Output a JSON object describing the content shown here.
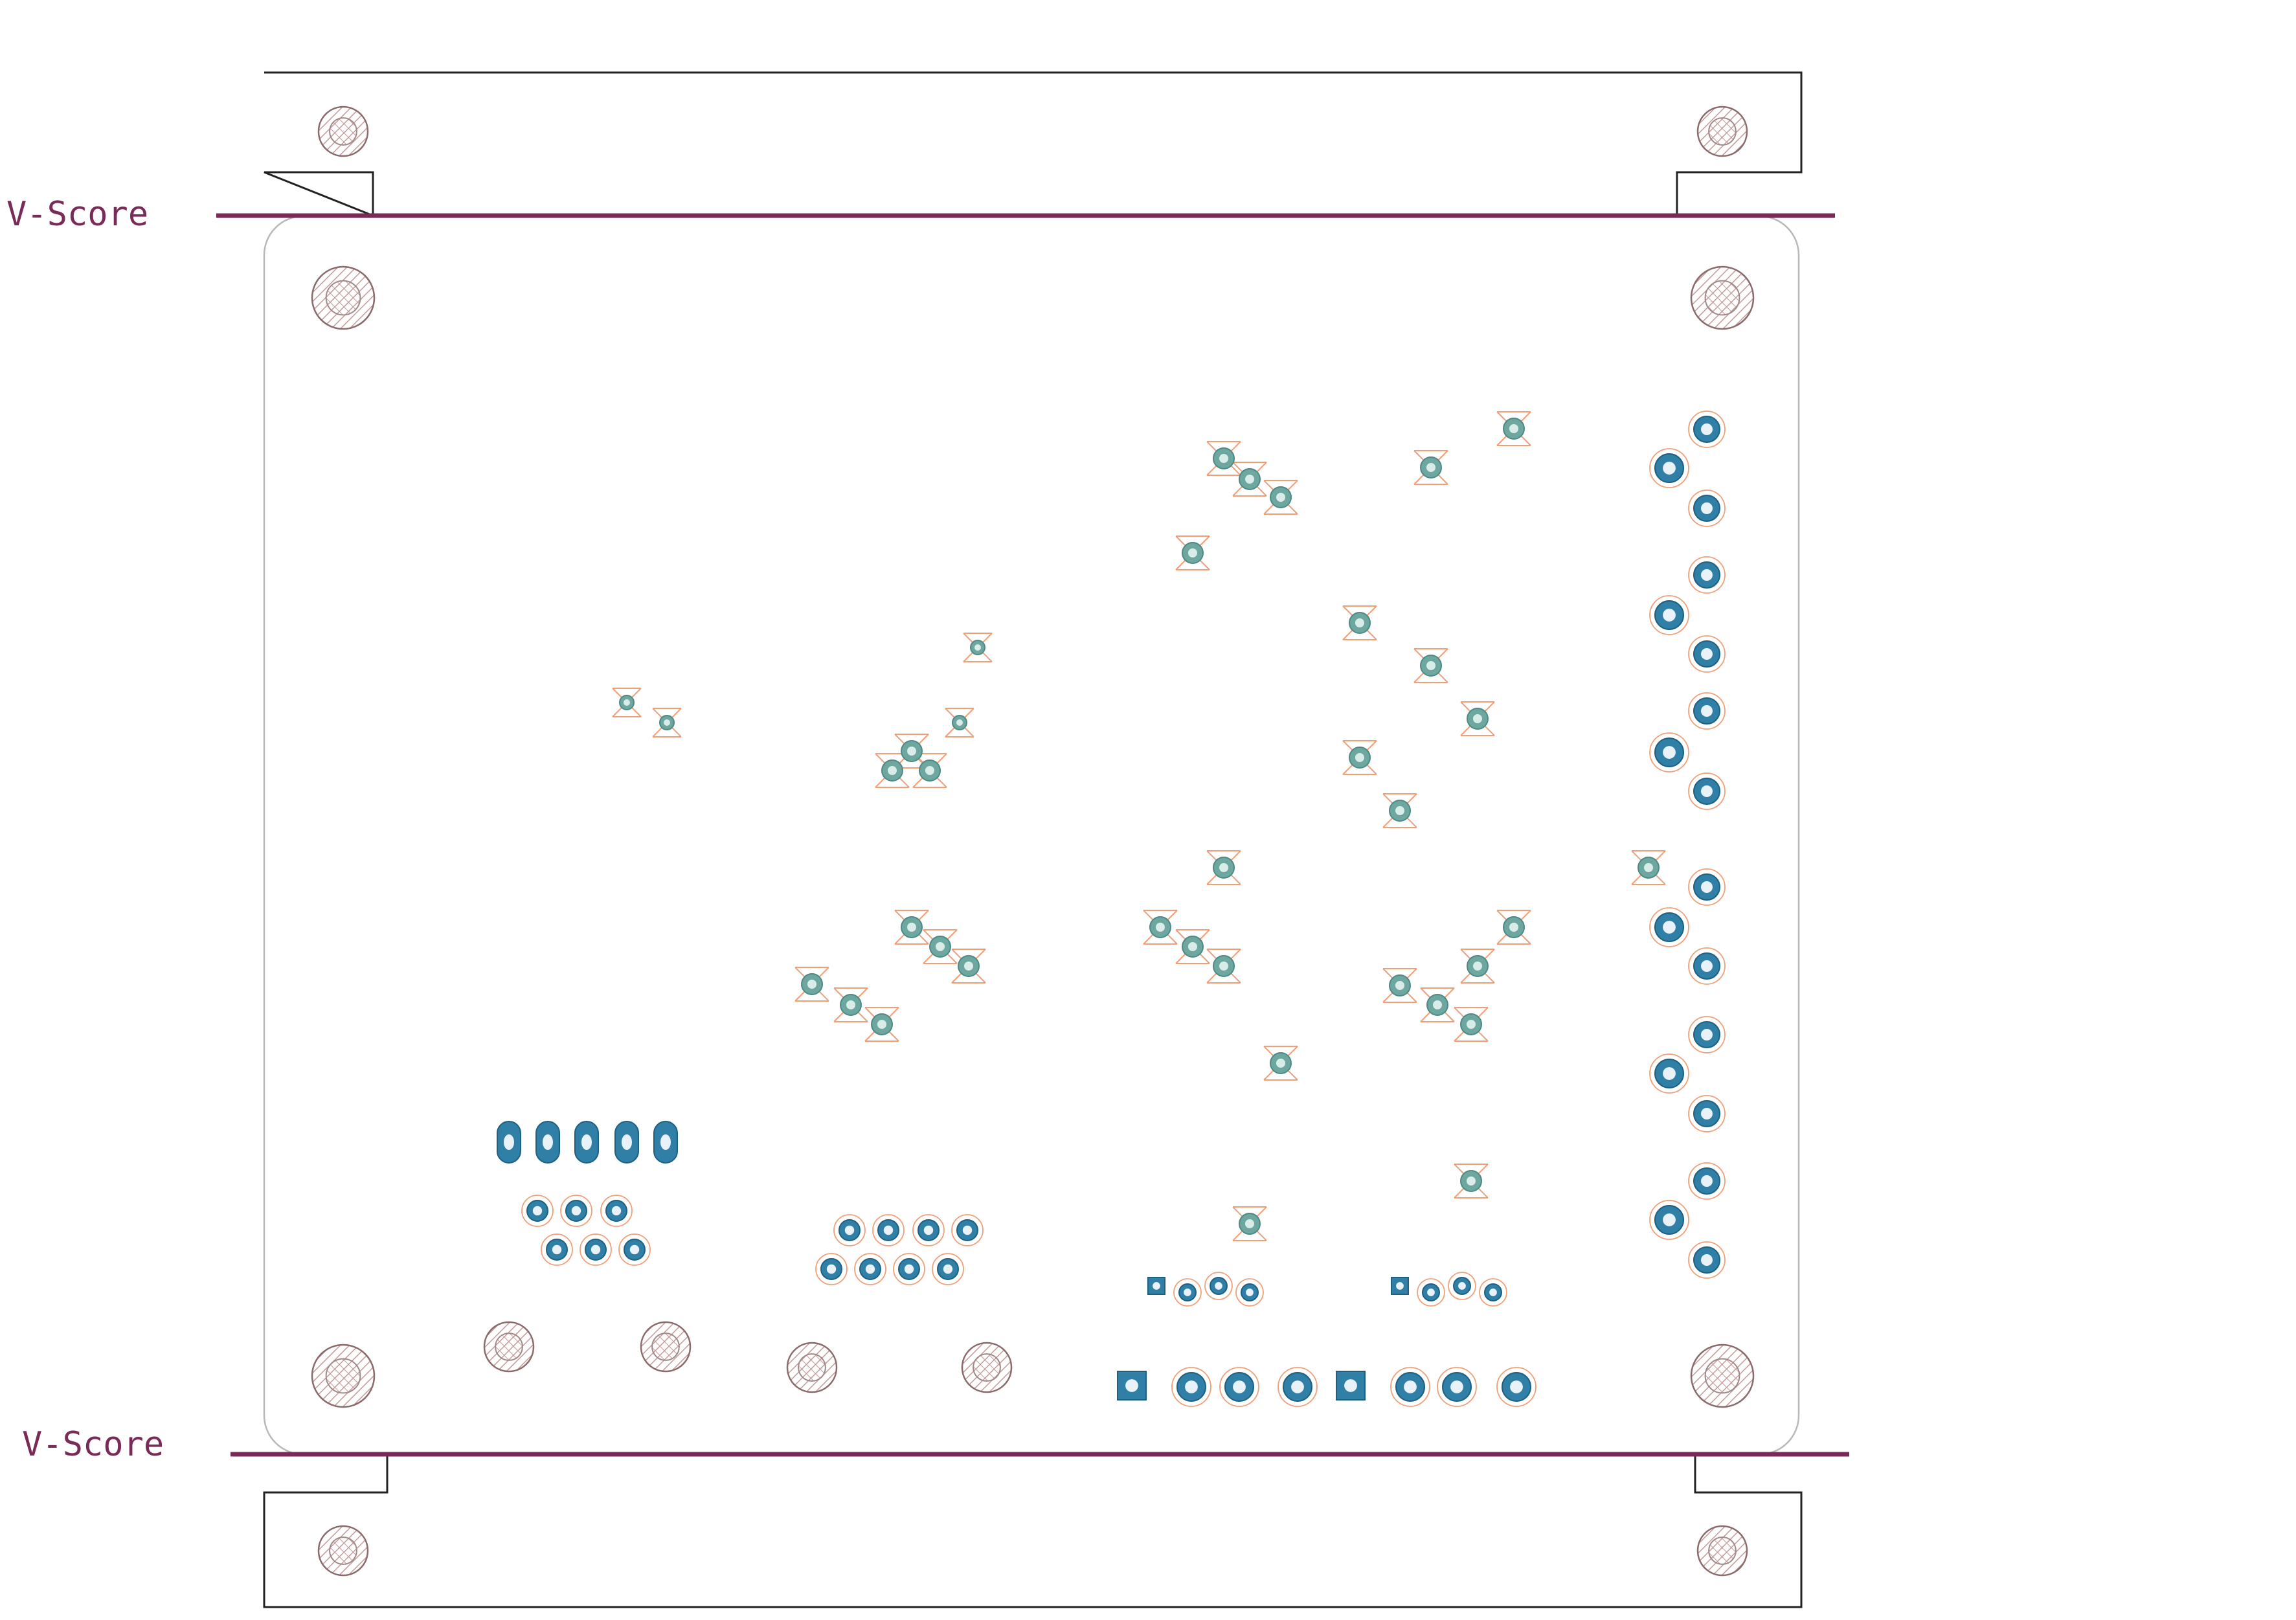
{
  "vscore": {
    "top_label": "V-Score",
    "bottom_label": "V-Score"
  },
  "colors": {
    "vscore_line": "#7a2a56",
    "pad_blue": "#2f7fa6",
    "pad_teal": "#6ea6a0",
    "silk_orange": "#f0a078",
    "outline": "#222222",
    "board_edge": "#b8b8b8",
    "hatch": "#b89090"
  },
  "icons": {
    "mounting_hole": "hatched-circle-icon",
    "small_via": "teal-via-icon",
    "through_hole_pad": "blue-pad-icon",
    "square_pad": "square-pad-icon",
    "oval_pad": "oval-pad-icon"
  }
}
